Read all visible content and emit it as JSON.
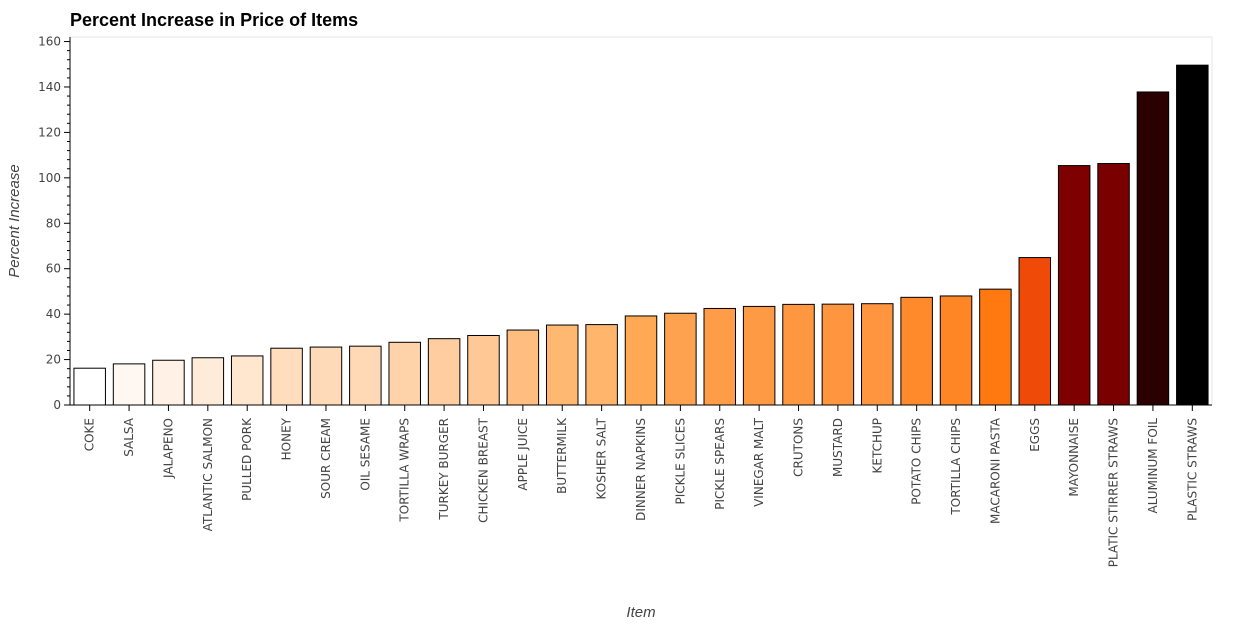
{
  "chart_data": {
    "type": "bar",
    "title": "Percent Increase in Price of Items",
    "xlabel": "Item",
    "ylabel": "Percent Increase",
    "ylim": [
      0,
      162
    ],
    "yticks": [
      0,
      20,
      40,
      60,
      80,
      100,
      120,
      140,
      160
    ],
    "grid": false,
    "categories": [
      "COKE",
      "SALSA",
      "JALAPENO",
      "ATLANTIC SALMON",
      "PULLED PORK",
      "HONEY",
      "SOUR CREAM",
      "OIL SESAME",
      "TORTILLA WRAPS",
      "TURKEY BURGER",
      "CHICKEN BREAST",
      "APPLE JUICE",
      "BUTTERMILK",
      "KOSHER SALT",
      "DINNER NAPKINS",
      "PICKLE SLICES",
      "PICKLE SPEARS",
      "VINEGAR MALT",
      "CRUTONS",
      "MUSTARD",
      "KETCHUP",
      "POTATO CHIPS",
      "TORTILLA CHIPS",
      "MACARONI PASTA",
      "EGGS",
      "MAYONNAISE",
      "PLATIC STIRRER STRAWS",
      "ALUMINUM FOIL",
      "PLASTIC STRAWS"
    ],
    "values": [
      16.2,
      18.1,
      19.7,
      20.8,
      21.6,
      25.0,
      25.5,
      25.9,
      27.6,
      29.2,
      30.6,
      33.0,
      35.2,
      35.4,
      39.2,
      40.4,
      42.5,
      43.4,
      44.3,
      44.4,
      44.6,
      47.4,
      48.0,
      51.0,
      64.9,
      105.4,
      106.3,
      137.8,
      149.6
    ],
    "colors": [
      "#ffffff",
      "#fff8f2",
      "#fff1e5",
      "#ffebd9",
      "#ffe6cf",
      "#ffddbd",
      "#ffdab8",
      "#ffd8b5",
      "#ffd3aa",
      "#ffcd9f",
      "#ffc894",
      "#ffbe7f",
      "#ffb86f",
      "#ffb66c",
      "#ffa955",
      "#ffa24f",
      "#ff9c47",
      "#ff9a44",
      "#ff9740",
      "#ff963f",
      "#ff953e",
      "#ff8a2b",
      "#ff8625",
      "#ff7910",
      "#f04a08",
      "#7f0000",
      "#7a0000",
      "#2b0000",
      "#000000"
    ]
  }
}
